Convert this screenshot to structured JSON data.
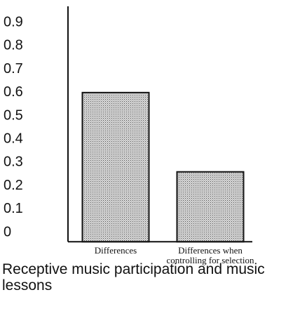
{
  "chart_data": {
    "type": "bar",
    "title": "Receptive music participation and music lessons",
    "categories": [
      "Differences",
      "Differences when controlling for selection"
    ],
    "values": [
      0.6,
      0.26
    ],
    "color": "#b5b5b5",
    "ylim": [
      -0.04,
      0.97
    ],
    "yticks": [
      0,
      0.1,
      0.2,
      0.3,
      0.4,
      0.5,
      0.6,
      0.7,
      0.8,
      0.9
    ],
    "grid": false
  }
}
